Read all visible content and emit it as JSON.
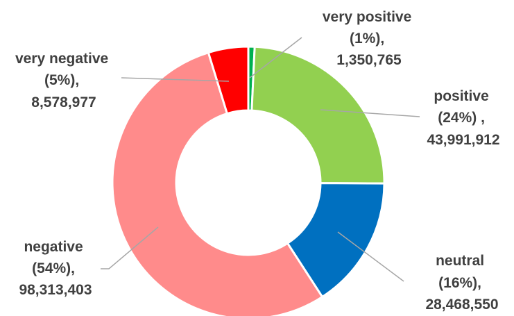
{
  "chart_data": {
    "type": "pie",
    "variant": "donut",
    "title": "",
    "legend": "none",
    "slices": [
      {
        "name": "very positive",
        "percent_label": "(1%),",
        "value_label": "1,350,765",
        "value": 1350765,
        "color": "#00B050"
      },
      {
        "name": "positive",
        "percent_label": "(24%) ,",
        "value_label": "43,991,912",
        "value": 43991912,
        "color": "#92D050"
      },
      {
        "name": "neutral",
        "percent_label": "(16%),",
        "value_label": "28,468,550",
        "value": 28468550,
        "color": "#0070C0"
      },
      {
        "name": "negative",
        "percent_label": "(54%),",
        "value_label": "98,313,403",
        "value": 98313403,
        "color": "#FF8B8B"
      },
      {
        "name": "very negative",
        "percent_label": "(5%),",
        "value_label": "8,578,977",
        "value": 8578977,
        "color": "#FF0000"
      }
    ]
  }
}
